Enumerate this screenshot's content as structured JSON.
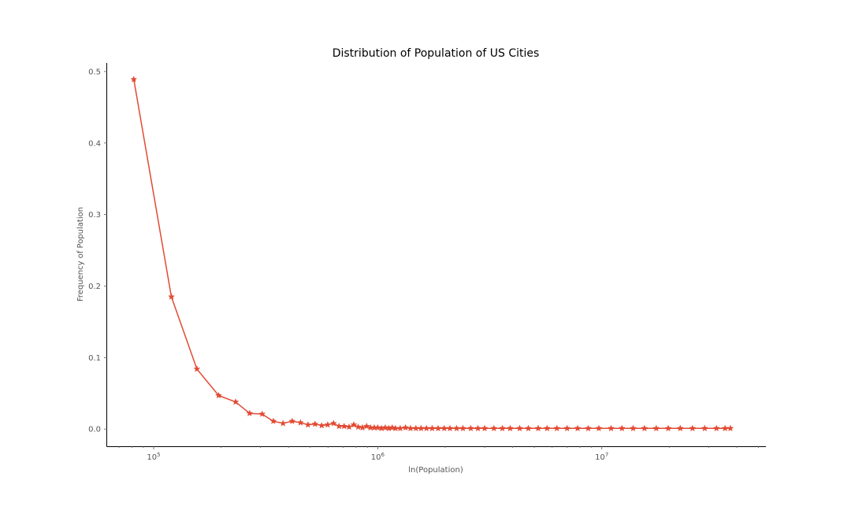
{
  "chart_data": {
    "type": "line",
    "title": "Distribution of Population of US Cities",
    "xlabel": "ln(Population)",
    "ylabel": "Frequency of Population",
    "x_scale": "log",
    "xlim": [
      62000,
      54000000
    ],
    "ylim": [
      -0.024,
      0.512
    ],
    "x_ticks": [
      {
        "value": 100000,
        "base": "10",
        "exp": "5"
      },
      {
        "value": 1000000,
        "base": "10",
        "exp": "6"
      },
      {
        "value": 10000000,
        "base": "10",
        "exp": "7"
      }
    ],
    "y_ticks": [
      "0.0",
      "0.1",
      "0.2",
      "0.3",
      "0.4",
      "0.5"
    ],
    "grid": false,
    "marker": "star",
    "line_color": "#E24A33",
    "series": [
      {
        "x": [
          81500,
          120000,
          156000,
          195000,
          232000,
          268000,
          305000,
          342000,
          378000,
          415000,
          452000,
          488000,
          525000,
          562000,
          598000,
          635000,
          672000,
          708000,
          745000,
          782000,
          818000,
          855000,
          892000,
          928000,
          965000,
          1000000,
          1040000,
          1080000,
          1120000,
          1160000,
          1200000,
          1260000,
          1330000,
          1400000,
          1480000,
          1560000,
          1650000,
          1750000,
          1860000,
          1980000,
          2100000,
          2250000,
          2400000,
          2600000,
          2800000,
          3000000,
          3300000,
          3600000,
          3900000,
          4300000,
          4700000,
          5200000,
          5700000,
          6300000,
          7000000,
          7800000,
          8700000,
          9700000,
          11000000,
          12300000,
          13800000,
          15500000,
          17500000,
          19800000,
          22400000,
          25400000,
          28800000,
          32500000,
          35500000,
          37500000
        ],
        "y": [
          0.489,
          0.185,
          0.084,
          0.047,
          0.038,
          0.022,
          0.021,
          0.011,
          0.008,
          0.011,
          0.009,
          0.006,
          0.007,
          0.005,
          0.006,
          0.008,
          0.004,
          0.004,
          0.003,
          0.006,
          0.003,
          0.002,
          0.004,
          0.002,
          0.002,
          0.002,
          0.001,
          0.002,
          0.001,
          0.002,
          0.001,
          0.001,
          0.002,
          0.001,
          0.001,
          0.001,
          0.001,
          0.001,
          0.001,
          0.001,
          0.001,
          0.001,
          0.001,
          0.001,
          0.001,
          0.001,
          0.001,
          0.001,
          0.001,
          0.001,
          0.001,
          0.001,
          0.001,
          0.001,
          0.001,
          0.001,
          0.001,
          0.001,
          0.001,
          0.001,
          0.001,
          0.001,
          0.001,
          0.001,
          0.001,
          0.001,
          0.001,
          0.001,
          0.001,
          0.001
        ]
      }
    ]
  }
}
